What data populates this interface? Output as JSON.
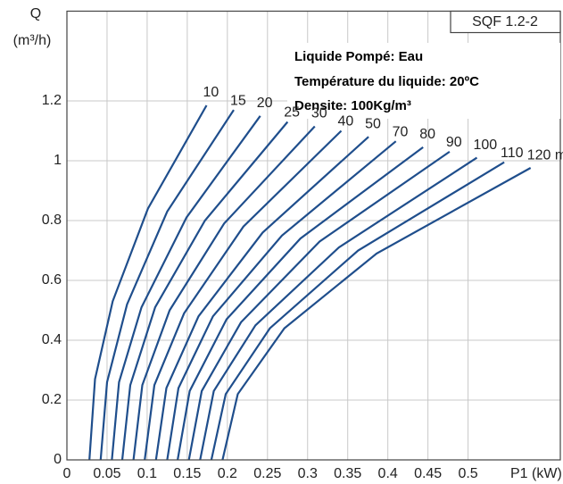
{
  "chart_data": {
    "type": "line",
    "model": "SQF 1.2-2",
    "annotations": [
      "Liquide Pompé: Eau",
      "Température du liquide: 20ºC",
      "Densite: 100Kg/m³"
    ],
    "ylabel": "Q",
    "yunit": "(m³/h)",
    "xlabel": "P1 (kW)",
    "xlim": [
      0,
      0.615
    ],
    "ylim": [
      0,
      1.5
    ],
    "xticks": [
      0,
      0.05,
      0.1,
      0.15,
      0.2,
      0.25,
      0.3,
      0.35,
      0.4,
      0.45,
      0.5
    ],
    "yticks": [
      0,
      0.2,
      0.4,
      0.6,
      0.8,
      1,
      1.2
    ],
    "grid": true,
    "color": "#1f4e8c",
    "series": [
      {
        "name": "10",
        "x": [
          0.028,
          0.035,
          0.057,
          0.101,
          0.174
        ],
        "values": [
          0,
          0.27,
          0.53,
          0.84,
          1.185
        ]
      },
      {
        "name": "15",
        "x": [
          0.042,
          0.05,
          0.075,
          0.125,
          0.208
        ],
        "values": [
          0,
          0.26,
          0.52,
          0.83,
          1.17
        ]
      },
      {
        "name": "20",
        "x": [
          0.056,
          0.065,
          0.093,
          0.149,
          0.241
        ],
        "values": [
          0,
          0.26,
          0.51,
          0.81,
          1.15
        ]
      },
      {
        "name": "25",
        "x": [
          0.069,
          0.079,
          0.11,
          0.172,
          0.275
        ],
        "values": [
          0,
          0.25,
          0.51,
          0.8,
          1.13
        ]
      },
      {
        "name": "30",
        "x": [
          0.083,
          0.094,
          0.128,
          0.196,
          0.309
        ],
        "values": [
          0,
          0.25,
          0.5,
          0.79,
          1.115
        ]
      },
      {
        "name": "40",
        "x": [
          0.097,
          0.109,
          0.146,
          0.22,
          0.342
        ],
        "values": [
          0,
          0.25,
          0.49,
          0.78,
          1.1
        ]
      },
      {
        "name": "50",
        "x": [
          0.111,
          0.124,
          0.164,
          0.244,
          0.376
        ],
        "values": [
          0,
          0.24,
          0.48,
          0.76,
          1.08
        ]
      },
      {
        "name": "70",
        "x": [
          0.125,
          0.139,
          0.182,
          0.268,
          0.41
        ],
        "values": [
          0,
          0.24,
          0.48,
          0.75,
          1.065
        ]
      },
      {
        "name": "80",
        "x": [
          0.138,
          0.153,
          0.199,
          0.291,
          0.444
        ],
        "values": [
          0,
          0.23,
          0.47,
          0.74,
          1.045
        ]
      },
      {
        "name": "90",
        "x": [
          0.152,
          0.168,
          0.217,
          0.315,
          0.477
        ],
        "values": [
          0,
          0.23,
          0.46,
          0.73,
          1.03
        ]
      },
      {
        "name": "100",
        "x": [
          0.166,
          0.183,
          0.235,
          0.339,
          0.511
        ],
        "values": [
          0,
          0.23,
          0.45,
          0.71,
          1.01
        ]
      },
      {
        "name": "110",
        "x": [
          0.18,
          0.198,
          0.253,
          0.363,
          0.545
        ],
        "values": [
          0,
          0.22,
          0.44,
          0.7,
          0.995
        ]
      },
      {
        "name": "120 m",
        "x": [
          0.194,
          0.213,
          0.271,
          0.386,
          0.578
        ],
        "values": [
          0,
          0.22,
          0.44,
          0.69,
          0.976
        ]
      }
    ]
  }
}
